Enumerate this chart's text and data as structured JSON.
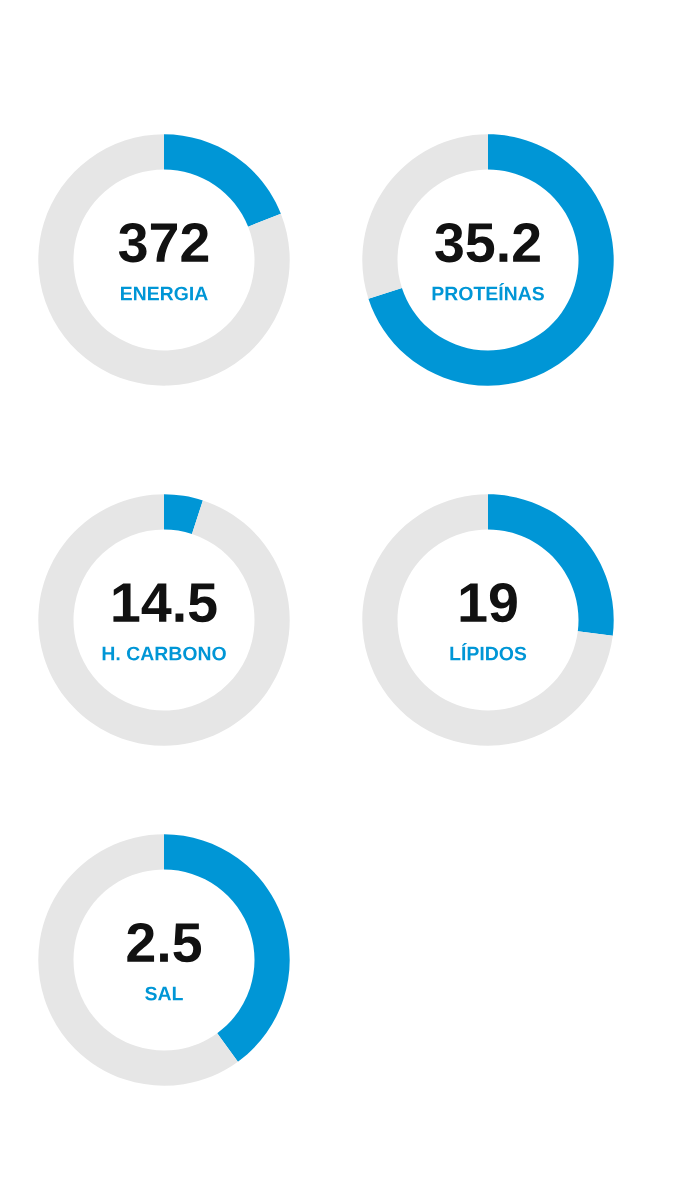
{
  "chart_data": [
    {
      "type": "donut",
      "title": "372",
      "subtitle": "ENERGIA",
      "categories": [
        null,
        null
      ],
      "values": [
        19,
        81
      ],
      "colors": [
        "#0096d6",
        "#e6e6e6"
      ]
    },
    {
      "type": "donut",
      "title": "35.2",
      "subtitle": "PROTEÍNAS",
      "categories": [
        null,
        null
      ],
      "values": [
        70,
        30
      ],
      "colors": [
        "#0096d6",
        "#e6e6e6"
      ]
    },
    {
      "type": "donut",
      "title": "14.5",
      "subtitle": "H. CARBONO",
      "categories": [
        null,
        null
      ],
      "values": [
        5,
        95
      ],
      "colors": [
        "#0096d6",
        "#e6e6e6"
      ]
    },
    {
      "type": "donut",
      "title": "19",
      "subtitle": "LÍPIDOS",
      "categories": [
        null,
        null
      ],
      "values": [
        27,
        73
      ],
      "colors": [
        "#0096d6",
        "#e6e6e6"
      ]
    },
    {
      "type": "donut",
      "title": "2.5",
      "subtitle": "SAL",
      "categories": [
        null,
        null
      ],
      "values": [
        40,
        60
      ],
      "colors": [
        "#0096d6",
        "#e6e6e6"
      ]
    }
  ]
}
